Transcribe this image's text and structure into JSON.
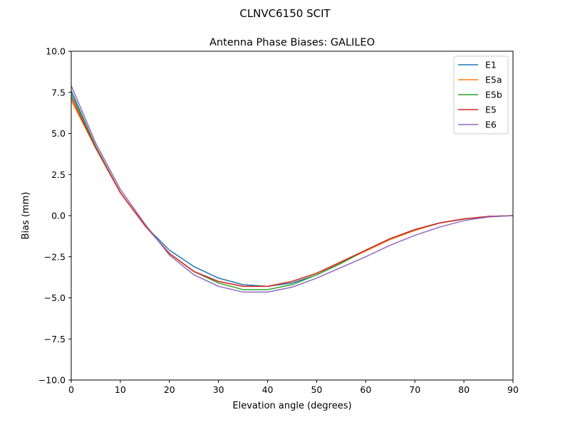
{
  "suptitle": "CLNVC6150        SCIT",
  "chart_data": {
    "type": "line",
    "title": "Antenna Phase Biases: GALILEO",
    "xlabel": "Elevation angle (degrees)",
    "ylabel": "Bias (mm)",
    "xlim": [
      0,
      90
    ],
    "ylim": [
      -10,
      10
    ],
    "xticks": [
      0,
      10,
      20,
      30,
      40,
      50,
      60,
      70,
      80,
      90
    ],
    "yticks": [
      -10.0,
      -7.5,
      -5.0,
      -2.5,
      0.0,
      2.5,
      5.0,
      7.5,
      10.0
    ],
    "xtick_labels": [
      "0",
      "10",
      "20",
      "30",
      "40",
      "50",
      "60",
      "70",
      "80",
      "90"
    ],
    "ytick_labels": [
      "−10.0",
      "−7.5",
      "−5.0",
      "−2.5",
      "0.0",
      "2.5",
      "5.0",
      "7.5",
      "10.0"
    ],
    "grid": false,
    "legend_position": "top-right",
    "x": [
      0,
      5,
      10,
      15,
      20,
      25,
      30,
      35,
      40,
      45,
      50,
      55,
      60,
      65,
      70,
      75,
      80,
      85,
      90
    ],
    "series": [
      {
        "name": "E1",
        "color": "#1f77b4",
        "values": [
          7.6,
          4.2,
          1.4,
          -0.6,
          -2.1,
          -3.1,
          -3.8,
          -4.2,
          -4.3,
          -4.1,
          -3.6,
          -2.9,
          -2.1,
          -1.4,
          -0.85,
          -0.45,
          -0.2,
          -0.05,
          0.0
        ]
      },
      {
        "name": "E5a",
        "color": "#ff7f0e",
        "values": [
          7.0,
          4.1,
          1.4,
          -0.6,
          -2.3,
          -3.4,
          -4.0,
          -4.3,
          -4.3,
          -4.0,
          -3.5,
          -2.85,
          -2.15,
          -1.45,
          -0.9,
          -0.45,
          -0.2,
          -0.05,
          0.0
        ]
      },
      {
        "name": "E5b",
        "color": "#2ca02c",
        "values": [
          7.4,
          4.2,
          1.4,
          -0.6,
          -2.3,
          -3.4,
          -4.1,
          -4.5,
          -4.5,
          -4.2,
          -3.6,
          -2.9,
          -2.1,
          -1.4,
          -0.85,
          -0.45,
          -0.2,
          -0.05,
          0.0
        ]
      },
      {
        "name": "E5",
        "color": "#d62728",
        "values": [
          7.2,
          4.1,
          1.4,
          -0.6,
          -2.3,
          -3.4,
          -4.0,
          -4.3,
          -4.3,
          -4.0,
          -3.5,
          -2.8,
          -2.1,
          -1.4,
          -0.85,
          -0.45,
          -0.2,
          -0.05,
          0.0
        ]
      },
      {
        "name": "E6",
        "color": "#9467bd",
        "values": [
          7.9,
          4.4,
          1.6,
          -0.5,
          -2.4,
          -3.6,
          -4.3,
          -4.65,
          -4.65,
          -4.35,
          -3.8,
          -3.15,
          -2.5,
          -1.8,
          -1.2,
          -0.7,
          -0.3,
          -0.08,
          0.0
        ]
      }
    ]
  }
}
